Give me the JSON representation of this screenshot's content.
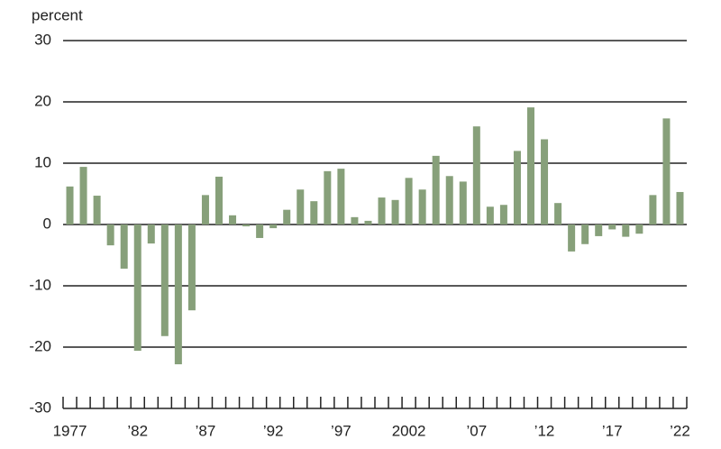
{
  "chart_data": {
    "type": "bar",
    "y_label": "percent",
    "categories": [
      "1977",
      null,
      null,
      null,
      null,
      "’82",
      null,
      null,
      null,
      null,
      "’87",
      null,
      null,
      null,
      null,
      "’92",
      null,
      null,
      null,
      null,
      "’97",
      null,
      null,
      null,
      null,
      "2002",
      null,
      null,
      null,
      null,
      "’07",
      null,
      null,
      null,
      null,
      "’12",
      null,
      null,
      null,
      null,
      "’17",
      null,
      null,
      null,
      null,
      "’22"
    ],
    "values": [
      6.2,
      9.4,
      4.7,
      -3.4,
      -7.2,
      -20.6,
      -3.1,
      -18.2,
      -22.8,
      -14.0,
      4.8,
      7.8,
      1.5,
      -0.3,
      -2.2,
      -0.6,
      2.4,
      5.7,
      3.8,
      8.7,
      9.1,
      1.2,
      0.6,
      4.4,
      4.0,
      7.6,
      5.7,
      11.2,
      7.9,
      7.0,
      16.0,
      2.9,
      3.2,
      12.0,
      19.1,
      13.9,
      3.5,
      -4.4,
      -3.2,
      -1.9,
      -0.8,
      -2.0,
      -1.5,
      4.8,
      17.3,
      5.3
    ],
    "color": "#87a07a",
    "ylim": [
      -30,
      30
    ],
    "yticks": [
      -30,
      -20,
      -10,
      0,
      10,
      20,
      30
    ],
    "grid": true
  }
}
